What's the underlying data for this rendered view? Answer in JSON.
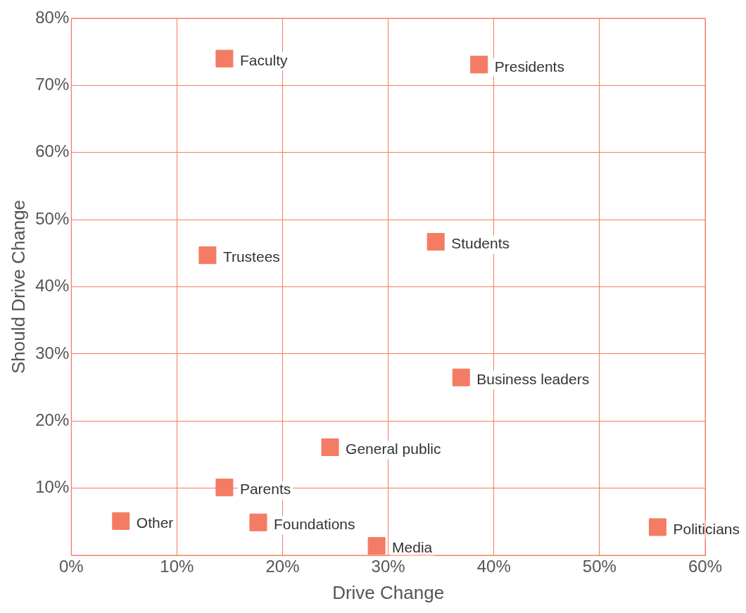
{
  "chart_data": {
    "type": "scatter",
    "xlabel": "Drive Change",
    "ylabel": "Should Drive Change",
    "x": [
      14.5,
      38.6,
      12.9,
      34.5,
      36.9,
      24.5,
      14.5,
      4.7,
      17.7,
      28.9,
      55.5
    ],
    "values": [
      74.0,
      73.1,
      44.7,
      46.7,
      26.5,
      16.1,
      10.1,
      5.1,
      4.9,
      1.4,
      4.2
    ],
    "color": "#f47c64",
    "marker": "square",
    "grid": true,
    "legend": false,
    "xlim": [
      0,
      60
    ],
    "xticks": [
      {
        "value": 0,
        "label": "0%"
      },
      {
        "value": 10,
        "label": "10%"
      },
      {
        "value": 20,
        "label": "20%"
      },
      {
        "value": 30,
        "label": "30%"
      },
      {
        "value": 40,
        "label": "40%"
      },
      {
        "value": 50,
        "label": "50%"
      },
      {
        "value": 60,
        "label": "60%"
      }
    ],
    "ylim": [
      0,
      80
    ],
    "yticks": [
      {
        "value": 10,
        "label": "10%"
      },
      {
        "value": 20,
        "label": "20%"
      },
      {
        "value": 30,
        "label": "30%"
      },
      {
        "value": 40,
        "label": "40%"
      },
      {
        "value": 50,
        "label": "50%"
      },
      {
        "value": 60,
        "label": "60%"
      },
      {
        "value": 70,
        "label": "70%"
      },
      {
        "value": 80,
        "label": "80%"
      }
    ],
    "annotations": [
      {
        "text": "Faculty",
        "x": 14.5,
        "y": 74.0
      },
      {
        "text": "Presidents",
        "x": 38.6,
        "y": 73.1
      },
      {
        "text": "Trustees",
        "x": 12.9,
        "y": 44.7
      },
      {
        "text": "Students",
        "x": 34.5,
        "y": 46.7
      },
      {
        "text": "Business leaders",
        "x": 36.9,
        "y": 26.5
      },
      {
        "text": "General public",
        "x": 24.5,
        "y": 16.1
      },
      {
        "text": "Parents",
        "x": 14.5,
        "y": 10.1
      },
      {
        "text": "Other",
        "x": 4.7,
        "y": 5.1
      },
      {
        "text": "Foundations",
        "x": 17.7,
        "y": 4.9
      },
      {
        "text": "Media",
        "x": 28.9,
        "y": 1.4
      },
      {
        "text": "Politicians",
        "x": 55.5,
        "y": 4.2
      }
    ]
  }
}
